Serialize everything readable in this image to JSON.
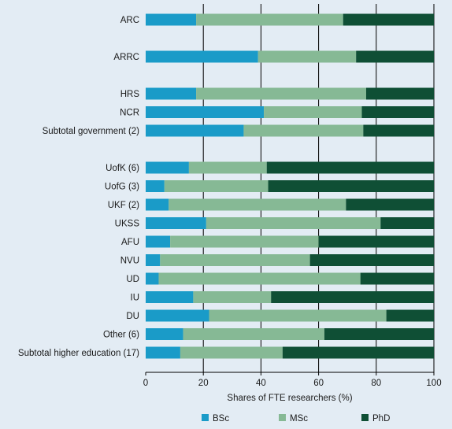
{
  "chart_data": {
    "type": "bar",
    "orientation": "horizontal",
    "stacked": true,
    "xlabel": "Shares of FTE researchers (%)",
    "ylabel": "",
    "xlim": [
      0,
      100
    ],
    "xticks": [
      0,
      20,
      40,
      60,
      80,
      100
    ],
    "grid": "vertical",
    "legend": "bottom",
    "categories": [
      "ARC",
      "",
      "ARRC",
      "",
      "HRS",
      "NCR",
      "Subtotal government (2)",
      "",
      "UofK (6)",
      "UofG (3)",
      "UKF (2)",
      "UKSS",
      "AFU",
      "NVU",
      "UD",
      "IU",
      "DU",
      "Other (6)",
      "Subtotal higher education (17)"
    ],
    "series": [
      {
        "name": "BSc",
        "color": "#1a9bc8",
        "values": [
          17.5,
          null,
          39,
          null,
          17.5,
          41,
          34,
          null,
          15,
          6.5,
          8,
          21,
          8.5,
          5,
          4.5,
          16.5,
          22,
          13,
          12
        ]
      },
      {
        "name": "MSc",
        "color": "#86b995",
        "values": [
          51,
          null,
          34,
          null,
          59,
          34,
          41.5,
          null,
          27,
          36,
          61.5,
          60.5,
          51.5,
          52,
          70,
          27,
          61.5,
          49,
          35.5
        ]
      },
      {
        "name": "PhD",
        "color": "#0f4f35",
        "values": [
          31.5,
          null,
          27,
          null,
          23.5,
          25,
          24.5,
          null,
          58,
          57.5,
          30.5,
          18.5,
          40,
          43,
          25.5,
          56.5,
          16.5,
          38,
          52.5
        ]
      }
    ]
  }
}
